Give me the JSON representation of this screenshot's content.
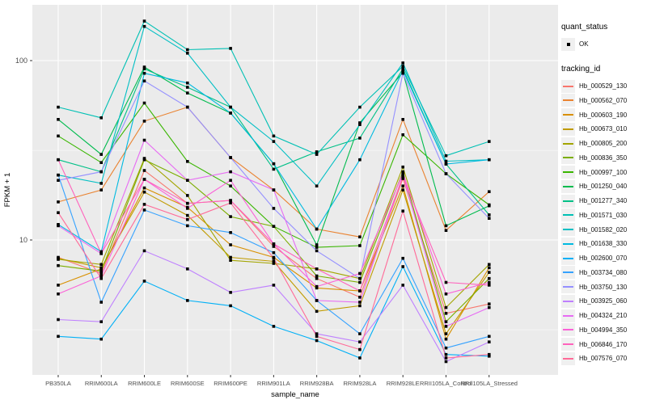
{
  "figure": {
    "bg": "#FFFFFF",
    "panel_bg": "#EBEBEB",
    "grid_major_color": "#FFFFFF",
    "grid_minor_color": "#F7F7F7",
    "tick_mark_color": "#333333",
    "tick_label_color": "#4D4D4D",
    "axis_title_color": "#000000",
    "point_color": "#000000"
  },
  "axes": {
    "x": {
      "title": "sample_name"
    },
    "y": {
      "title": "FPKM + 1",
      "scale": "log10",
      "tick_labels": [
        "100",
        "10"
      ],
      "tick_values": [
        100,
        10
      ],
      "minor_tick_values": [
        31.6,
        3.16
      ]
    }
  },
  "legend": {
    "quant_status": {
      "title": "quant_status",
      "items": [
        {
          "label": "OK",
          "marker": "black-point"
        }
      ]
    },
    "tracking_id_title": "tracking_id"
  },
  "chart_data": {
    "type": "line",
    "title": "",
    "xlabel": "sample_name",
    "ylabel": "FPKM + 1",
    "y_scale": "log10",
    "ylim": [
      1.7,
      200
    ],
    "grid": true,
    "legend_position": "right",
    "point_shape": "filled-black-square",
    "categories": [
      "PB350LA",
      "RRIM600LA",
      "RRIM600LE",
      "RRIM600SE",
      "RRIM600PE",
      "RRIM901LA",
      "RRIM928BA",
      "RRIM928LA",
      "RRIM928LE",
      "RRII105LA_Control",
      "RRII105LA_Stressed"
    ],
    "series": [
      {
        "name": "Hb_000529_130",
        "color": "#F8766D",
        "values": [
          8.0,
          6.5,
          24.4,
          16.0,
          16.6,
          9.2,
          6.1,
          4.8,
          22.0,
          3.9,
          4.4
        ]
      },
      {
        "name": "Hb_000562_070",
        "color": "#EA8331",
        "values": [
          16.3,
          19.0,
          46.0,
          55.0,
          28.8,
          19.0,
          11.5,
          10.4,
          47.0,
          11.3,
          18.6
        ]
      },
      {
        "name": "Hb_000603_190",
        "color": "#D89000",
        "values": [
          5.6,
          6.9,
          19.5,
          15.2,
          9.4,
          8.0,
          5.4,
          5.2,
          20.0,
          2.8,
          7.0
        ]
      },
      {
        "name": "Hb_000673_010",
        "color": "#C09B00",
        "values": [
          7.9,
          7.0,
          18.5,
          13.7,
          8.0,
          7.6,
          4.0,
          4.3,
          19.0,
          3.0,
          6.6
        ]
      },
      {
        "name": "Hb_000805_200",
        "color": "#A3A500",
        "values": [
          7.8,
          7.3,
          28.5,
          17.7,
          7.7,
          7.4,
          6.9,
          6.1,
          25.5,
          4.2,
          7.3
        ]
      },
      {
        "name": "Hb_000836_350",
        "color": "#7CAE00",
        "values": [
          7.2,
          6.7,
          28.0,
          21.5,
          13.5,
          11.9,
          6.3,
          5.8,
          24.0,
          3.5,
          6.1
        ]
      },
      {
        "name": "Hb_000997_100",
        "color": "#39B600",
        "values": [
          38.0,
          27.0,
          58.0,
          27.4,
          20.0,
          11.9,
          9.1,
          9.3,
          38.6,
          23.4,
          15.7
        ]
      },
      {
        "name": "Hb_001250_040",
        "color": "#00BB4E",
        "values": [
          47.0,
          30.0,
          92.0,
          66.0,
          51.0,
          26.6,
          9.4,
          45.0,
          86.0,
          12.0,
          15.5
        ]
      },
      {
        "name": "Hb_001277_340",
        "color": "#00C087",
        "values": [
          28.0,
          24.0,
          90.0,
          71.0,
          55.0,
          24.8,
          31.0,
          37.0,
          90.0,
          26.5,
          13.8
        ]
      },
      {
        "name": "Hb_001571_030",
        "color": "#00C0B4",
        "values": [
          55.0,
          48.0,
          166.0,
          115.0,
          117.0,
          38.0,
          30.0,
          55.0,
          93.0,
          29.5,
          35.4
        ]
      },
      {
        "name": "Hb_001582_020",
        "color": "#00BFC4",
        "values": [
          23.0,
          20.7,
          155.0,
          110.0,
          55.0,
          35.4,
          20.0,
          44.0,
          97.0,
          27.5,
          28.0
        ]
      },
      {
        "name": "Hb_001638_330",
        "color": "#00BAE0",
        "values": [
          12.2,
          8.6,
          85.0,
          75.0,
          51.0,
          26.6,
          11.5,
          28.0,
          88.0,
          26.5,
          28.0
        ]
      },
      {
        "name": "Hb_002600_070",
        "color": "#00B0F6",
        "values": [
          2.9,
          2.8,
          5.9,
          4.6,
          4.3,
          3.3,
          2.75,
          2.2,
          7.1,
          2.3,
          2.25
        ]
      },
      {
        "name": "Hb_003734_080",
        "color": "#35A2FF",
        "values": [
          23.0,
          4.5,
          14.7,
          12.0,
          11.0,
          8.5,
          4.6,
          3.0,
          7.9,
          2.5,
          2.9
        ]
      },
      {
        "name": "Hb_003750_130",
        "color": "#9590FF",
        "values": [
          21.5,
          24.0,
          77.0,
          55.0,
          28.8,
          15.0,
          8.7,
          6.1,
          85.0,
          23.4,
          13.2
        ]
      },
      {
        "name": "Hb_003925_060",
        "color": "#BF80FF",
        "values": [
          3.6,
          3.5,
          8.7,
          6.9,
          5.1,
          5.6,
          3.0,
          2.7,
          5.6,
          2.1,
          2.7
        ]
      },
      {
        "name": "Hb_004324_210",
        "color": "#E76BF3",
        "values": [
          12.0,
          8.4,
          36.0,
          21.5,
          24.0,
          19.0,
          4.6,
          4.5,
          23.0,
          3.3,
          4.2
        ]
      },
      {
        "name": "Hb_004994_350",
        "color": "#FB61D7",
        "values": [
          5.0,
          6.3,
          21.8,
          15.0,
          21.5,
          9.5,
          5.5,
          6.5,
          23.5,
          5.0,
          5.8
        ]
      },
      {
        "name": "Hb_006846_170",
        "color": "#FF62BC",
        "values": [
          28.0,
          8.4,
          21.8,
          16.0,
          16.6,
          9.5,
          6.9,
          5.2,
          22.5,
          5.8,
          5.6
        ]
      },
      {
        "name": "Hb_007576_070",
        "color": "#FF6A98",
        "values": [
          14.2,
          6.1,
          15.8,
          13.0,
          16.1,
          7.9,
          2.9,
          2.45,
          14.5,
          2.2,
          2.3
        ]
      }
    ]
  }
}
